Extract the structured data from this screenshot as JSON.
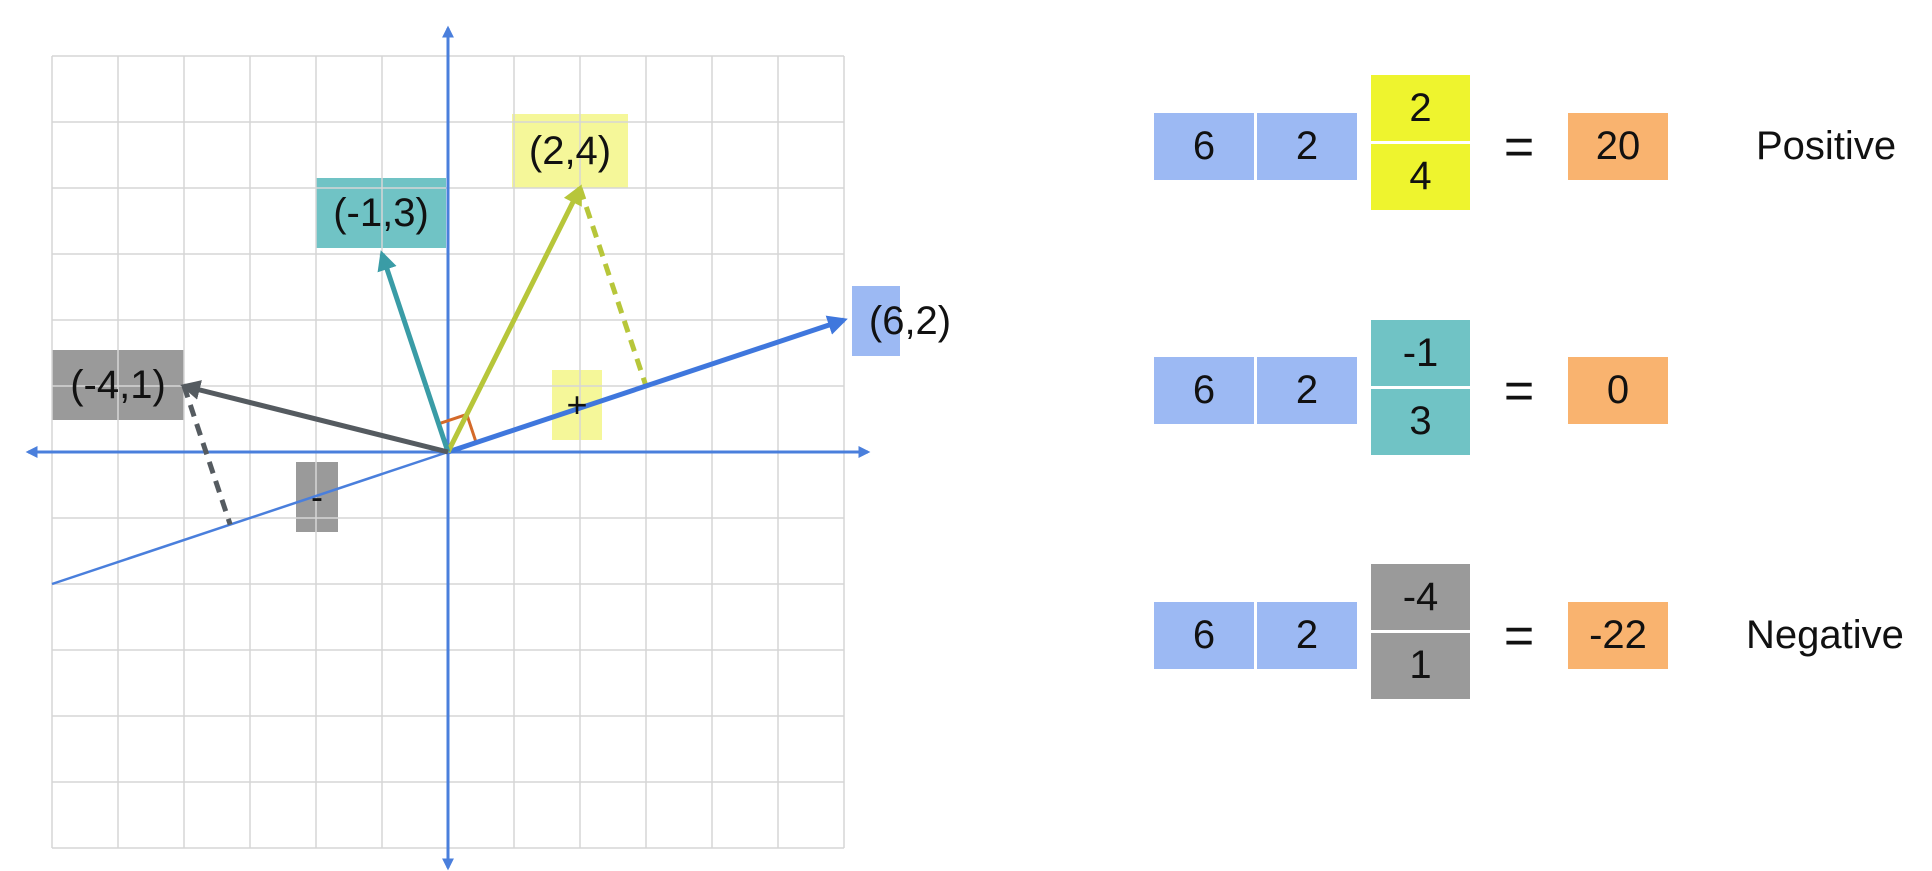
{
  "colors": {
    "grid": "#d6d6d6",
    "axis": "#4a7fdc",
    "projection_line": "#4a7fdc",
    "vec_main": "#3f77dd",
    "vec_pos": "#b7c63a",
    "vec_zero": "#3a9ca6",
    "vec_neg": "#555b60",
    "right_angle": "#d46a2a",
    "box_blue": "#9cb9f3",
    "box_yellow": "#eef42e",
    "box_yellow_light": "#f5f799",
    "box_teal": "#70c3c5",
    "box_gray": "#9a9a9a",
    "box_orange": "#f9b36f"
  },
  "diagram": {
    "vectors": [
      {
        "name": "vec-6-2",
        "x": 6,
        "y": 2,
        "label": "(6,2)",
        "color_key": "vec_main"
      },
      {
        "name": "vec-2-4",
        "x": 2,
        "y": 4,
        "label": "(2,4)",
        "color_key": "vec_pos"
      },
      {
        "name": "vec-neg1-3",
        "x": -1,
        "y": 3,
        "label": "(-1,3)",
        "color_key": "vec_zero"
      },
      {
        "name": "vec-neg4-1",
        "x": -4,
        "y": 1,
        "label": "(-4,1)",
        "color_key": "vec_neg"
      }
    ],
    "sign_plus": "+",
    "sign_minus": "-"
  },
  "equations": [
    {
      "a": "6",
      "b": "2",
      "top": "2",
      "bottom": "4",
      "eq": "=",
      "result": "20",
      "word": "Positive",
      "color_key": "box_yellow"
    },
    {
      "a": "6",
      "b": "2",
      "top": "-1",
      "bottom": "3",
      "eq": "=",
      "result": "0",
      "word": "",
      "color_key": "box_teal"
    },
    {
      "a": "6",
      "b": "2",
      "top": "-4",
      "bottom": "1",
      "eq": "=",
      "result": "-22",
      "word": "Negative",
      "color_key": "box_gray"
    }
  ]
}
